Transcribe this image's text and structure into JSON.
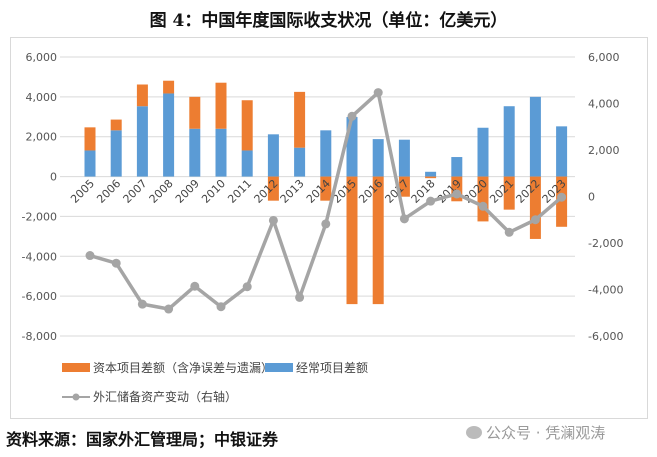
{
  "chart_data": {
    "type": "bar",
    "title": "图 4：中国年度国际收支状况（单位：亿美元）",
    "categories": [
      "2005",
      "2006",
      "2007",
      "2008",
      "2009",
      "2010",
      "2011",
      "2012",
      "2013",
      "2014",
      "2015",
      "2016",
      "2017",
      "2018",
      "2019",
      "2020",
      "2021",
      "2022",
      "2023"
    ],
    "series": [
      {
        "name": "资本项目差额（含净误差与遗漏）",
        "type": "bar",
        "axis": "left",
        "color": "#ED7D31",
        "values": [
          1160,
          540,
          1090,
          640,
          1600,
          2310,
          2520,
          -1210,
          2800,
          -1210,
          -6400,
          -6400,
          -1010,
          -80,
          -1240,
          -2250,
          -1660,
          -3130,
          -2520
        ]
      },
      {
        "name": "经常项目差额",
        "type": "bar",
        "axis": "left",
        "color": "#5B9BD5",
        "values": [
          1310,
          2320,
          3530,
          4170,
          2400,
          2400,
          1310,
          2120,
          1450,
          2320,
          2990,
          1880,
          1850,
          240,
          980,
          2450,
          3530,
          4000,
          2520
        ]
      },
      {
        "name": "外汇储备资产变动（右轴）",
        "type": "line",
        "axis": "right",
        "color": "#A5A5A5",
        "values": [
          -2540,
          -2870,
          -4630,
          -4840,
          -3860,
          -4740,
          -3880,
          -1030,
          -4340,
          -1180,
          3450,
          4470,
          -960,
          -200,
          110,
          -420,
          -1540,
          -1000,
          -30
        ]
      }
    ],
    "stacked": true,
    "left_axis": {
      "range": [
        -8000,
        6000
      ],
      "ticks": [
        "6,000",
        "4,000",
        "2,000",
        "0",
        "-2,000",
        "-4,000",
        "-6,000",
        "-8,000"
      ]
    },
    "right_axis": {
      "range": [
        -6000,
        6000
      ],
      "ticks": [
        "6,000",
        "4,000",
        "2,000",
        "0",
        "-2,000",
        "-4,000",
        "-6,000"
      ]
    },
    "grid": true,
    "legend_placement": "bottom"
  },
  "footer": {
    "source": "资料来源：国家外汇管理局；中银证券",
    "watermark": "公众号 · 凭澜观涛"
  }
}
